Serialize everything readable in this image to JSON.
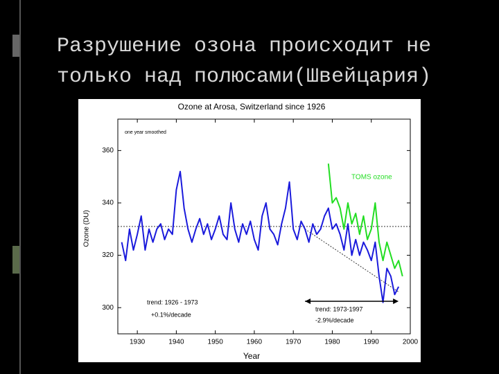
{
  "slide": {
    "title_lines": [
      "Разрушение озона происходит не",
      "только над полюсами(Швейцария)"
    ]
  },
  "chart_data": {
    "type": "line",
    "title": "Ozone at Arosa, Switzerland since 1926",
    "x_label": "Year",
    "y_label": "Ozone (DU)",
    "annotations": [
      "one year smoothed",
      "TOMS ozone",
      "trend: 1926 - 1973",
      "+0.1%/decade",
      "trend: 1973-1997",
      "-2.9%/decade"
    ],
    "xlim": [
      1925,
      2000
    ],
    "xticks": [
      1930,
      1940,
      1950,
      1960,
      1970,
      1980,
      1990,
      2000
    ],
    "ylim": [
      290,
      372
    ],
    "yticks": [
      300,
      320,
      340,
      360
    ],
    "grid": false,
    "series": [
      {
        "name": "Arosa",
        "color": "#1a1adc",
        "x": [
          1926,
          1927,
          1928,
          1929,
          1930,
          1931,
          1932,
          1933,
          1934,
          1935,
          1936,
          1937,
          1938,
          1939,
          1940,
          1941,
          1942,
          1943,
          1944,
          1945,
          1946,
          1947,
          1948,
          1949,
          1950,
          1951,
          1952,
          1953,
          1954,
          1955,
          1956,
          1957,
          1958,
          1959,
          1960,
          1961,
          1962,
          1963,
          1964,
          1965,
          1966,
          1967,
          1968,
          1969,
          1970,
          1971,
          1972,
          1973,
          1974,
          1975,
          1976,
          1977,
          1978,
          1979,
          1980,
          1981,
          1982,
          1983,
          1984,
          1985,
          1986,
          1987,
          1988,
          1989,
          1990,
          1991,
          1992,
          1993,
          1994,
          1995,
          1996,
          1997
        ],
        "values": [
          325,
          318,
          330,
          322,
          328,
          335,
          322,
          330,
          325,
          330,
          332,
          326,
          330,
          328,
          345,
          352,
          338,
          330,
          325,
          330,
          334,
          328,
          332,
          326,
          330,
          335,
          328,
          326,
          340,
          330,
          325,
          332,
          328,
          333,
          326,
          322,
          335,
          340,
          330,
          328,
          324,
          332,
          338,
          348,
          330,
          326,
          333,
          330,
          325,
          332,
          328,
          330,
          335,
          338,
          330,
          332,
          328,
          322,
          332,
          320,
          326,
          320,
          325,
          322,
          318,
          325,
          312,
          302,
          315,
          312,
          305,
          308
        ]
      },
      {
        "name": "TOMS ozone",
        "color": "#22dd22",
        "x": [
          1979,
          1980,
          1981,
          1982,
          1983,
          1984,
          1985,
          1986,
          1987,
          1988,
          1989,
          1990,
          1991,
          1992,
          1993,
          1994,
          1995,
          1996,
          1997,
          1998
        ],
        "values": [
          355,
          340,
          342,
          338,
          330,
          340,
          332,
          336,
          328,
          335,
          326,
          330,
          340,
          325,
          318,
          325,
          320,
          315,
          318,
          312
        ]
      }
    ],
    "trend_lines": [
      {
        "x": [
          1925,
          2000
        ],
        "values": [
          331,
          331
        ]
      },
      {
        "x": [
          1973,
          1997
        ],
        "values": [
          330,
          306
        ]
      }
    ]
  }
}
